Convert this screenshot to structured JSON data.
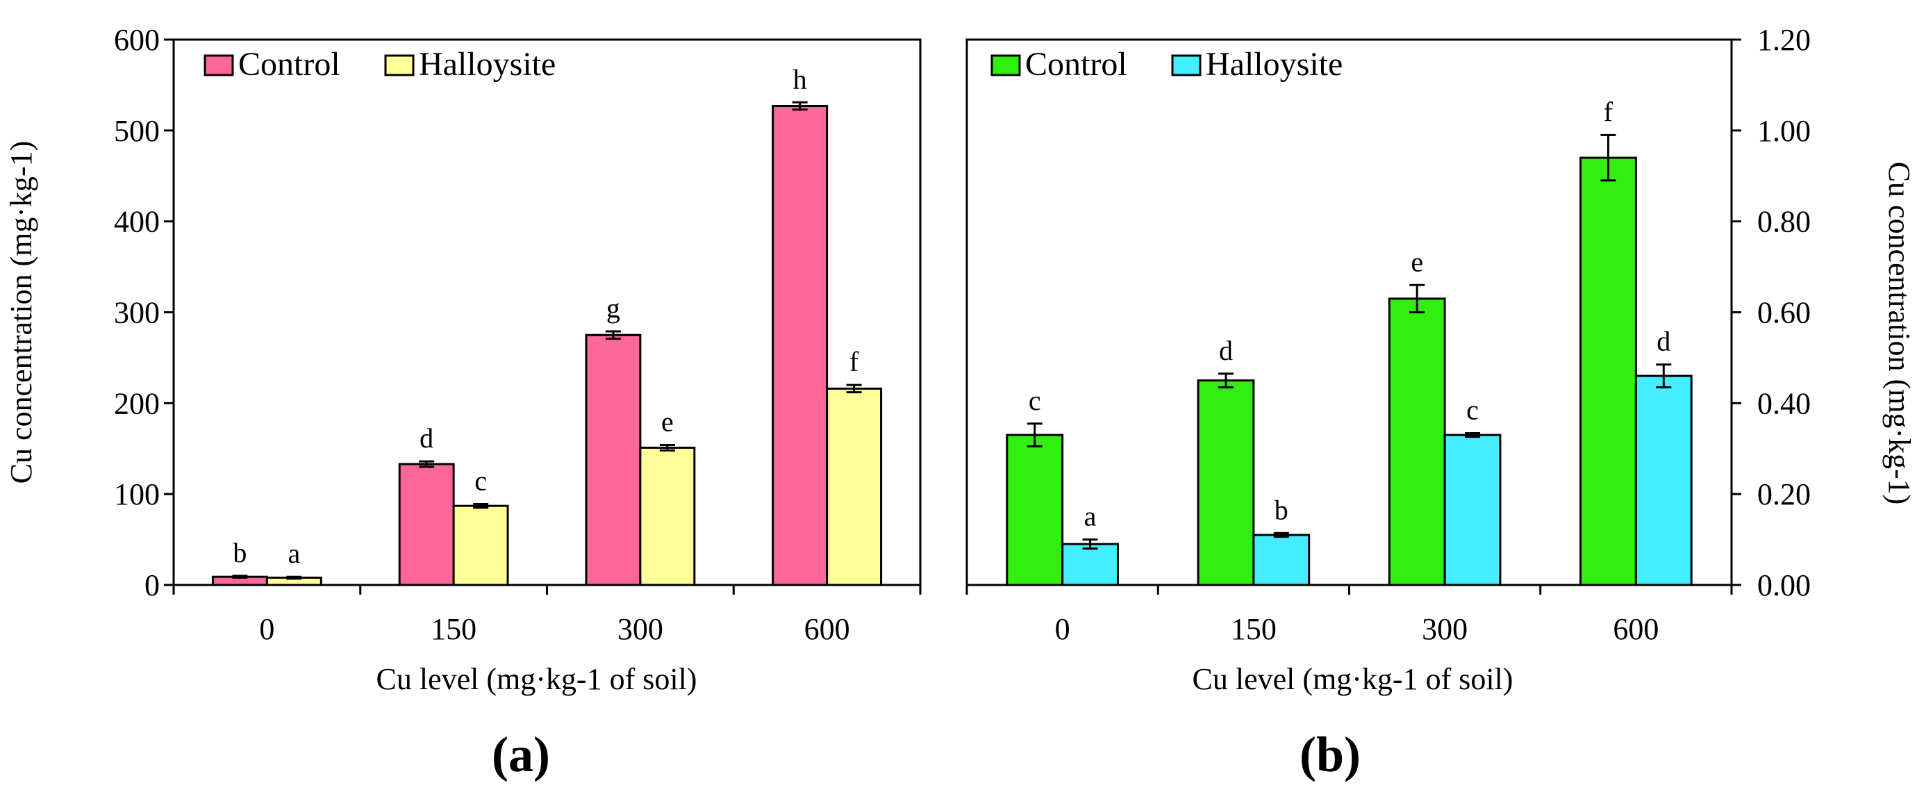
{
  "chart_data": [
    {
      "type": "bar",
      "panel_label": "(a)",
      "categories": [
        "0",
        "150",
        "300",
        "600"
      ],
      "xlabel": "Cu level (mg·kg-1 of soil)",
      "ylabel": "Cu concentration (mg·kg-1)",
      "ylim": [
        0,
        600
      ],
      "yticks": [
        0,
        100,
        200,
        300,
        400,
        500,
        600
      ],
      "ytick_labels": [
        "0",
        "100",
        "200",
        "300",
        "400",
        "500",
        "600"
      ],
      "y_axis_side": "left",
      "legend_position": "top-left",
      "series": [
        {
          "name": "Control",
          "color": "#FF6699",
          "values": [
            9,
            133,
            275,
            527
          ],
          "errors": [
            1,
            3,
            4,
            4
          ],
          "letters": [
            "b",
            "d",
            "g",
            "h"
          ]
        },
        {
          "name": "Halloysite",
          "color": "#FFFF99",
          "values": [
            8,
            87,
            151,
            216
          ],
          "errors": [
            1,
            2,
            3,
            4
          ],
          "letters": [
            "a",
            "c",
            "e",
            "f"
          ]
        }
      ]
    },
    {
      "type": "bar",
      "panel_label": "(b)",
      "categories": [
        "0",
        "150",
        "300",
        "600"
      ],
      "xlabel": "Cu level (mg·kg-1 of soil)",
      "ylabel": "Cu concentration (mg·kg-1)",
      "ylim": [
        0,
        1.2
      ],
      "yticks": [
        0,
        0.2,
        0.4,
        0.6,
        0.8,
        1.0,
        1.2
      ],
      "ytick_labels": [
        "0.00",
        "0.20",
        "0.40",
        "0.60",
        "0.80",
        "1.00",
        "1.20"
      ],
      "y_axis_side": "right",
      "legend_position": "top-left",
      "series": [
        {
          "name": "Control",
          "color": "#33EE11",
          "values": [
            0.33,
            0.45,
            0.63,
            0.94
          ],
          "errors": [
            0.025,
            0.015,
            0.03,
            0.05
          ],
          "letters": [
            "c",
            "d",
            "e",
            "f"
          ]
        },
        {
          "name": "Halloysite",
          "color": "#44EEFF",
          "values": [
            0.09,
            0.11,
            0.33,
            0.46
          ],
          "errors": [
            0.01,
            0.004,
            0.004,
            0.025
          ],
          "letters": [
            "a",
            "b",
            "c",
            "d"
          ]
        }
      ]
    }
  ]
}
